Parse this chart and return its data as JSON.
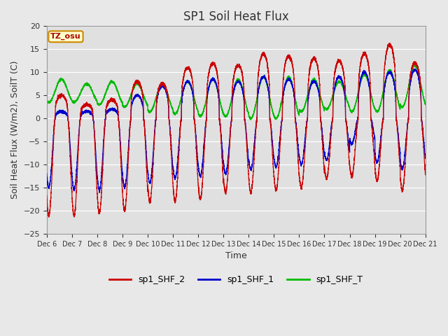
{
  "title": "SP1 Soil Heat Flux",
  "ylabel": "Soil Heat Flux (W/m2), SoilT (C)",
  "xlabel": "Time",
  "xlim_start": 0,
  "xlim_end": 360,
  "ylim": [
    -25,
    20
  ],
  "yticks": [
    -25,
    -20,
    -15,
    -10,
    -5,
    0,
    5,
    10,
    15,
    20
  ],
  "xtick_labels": [
    "Dec 6",
    "Dec 7",
    "Dec 8",
    "Dec 9",
    "Dec 10",
    "Dec 11",
    "Dec 12",
    "Dec 13",
    "Dec 14",
    "Dec 15",
    "Dec 16",
    "Dec 17",
    "Dec 18",
    "Dec 19",
    "Dec 20",
    "Dec 21"
  ],
  "xtick_positions": [
    0,
    24,
    48,
    72,
    96,
    120,
    144,
    168,
    192,
    216,
    240,
    264,
    288,
    312,
    336,
    360
  ],
  "color_red": "#cc0000",
  "color_blue": "#0000cc",
  "color_green": "#00bb00",
  "legend_labels": [
    "sp1_SHF_2",
    "sp1_SHF_1",
    "sp1_SHF_T"
  ],
  "tz_label": "TZ_osu",
  "bg_color": "#e8e8e8",
  "plot_bg": "#e0e0e0",
  "grid_color": "#ffffff",
  "title_fontsize": 12,
  "label_fontsize": 9,
  "tick_fontsize": 8
}
